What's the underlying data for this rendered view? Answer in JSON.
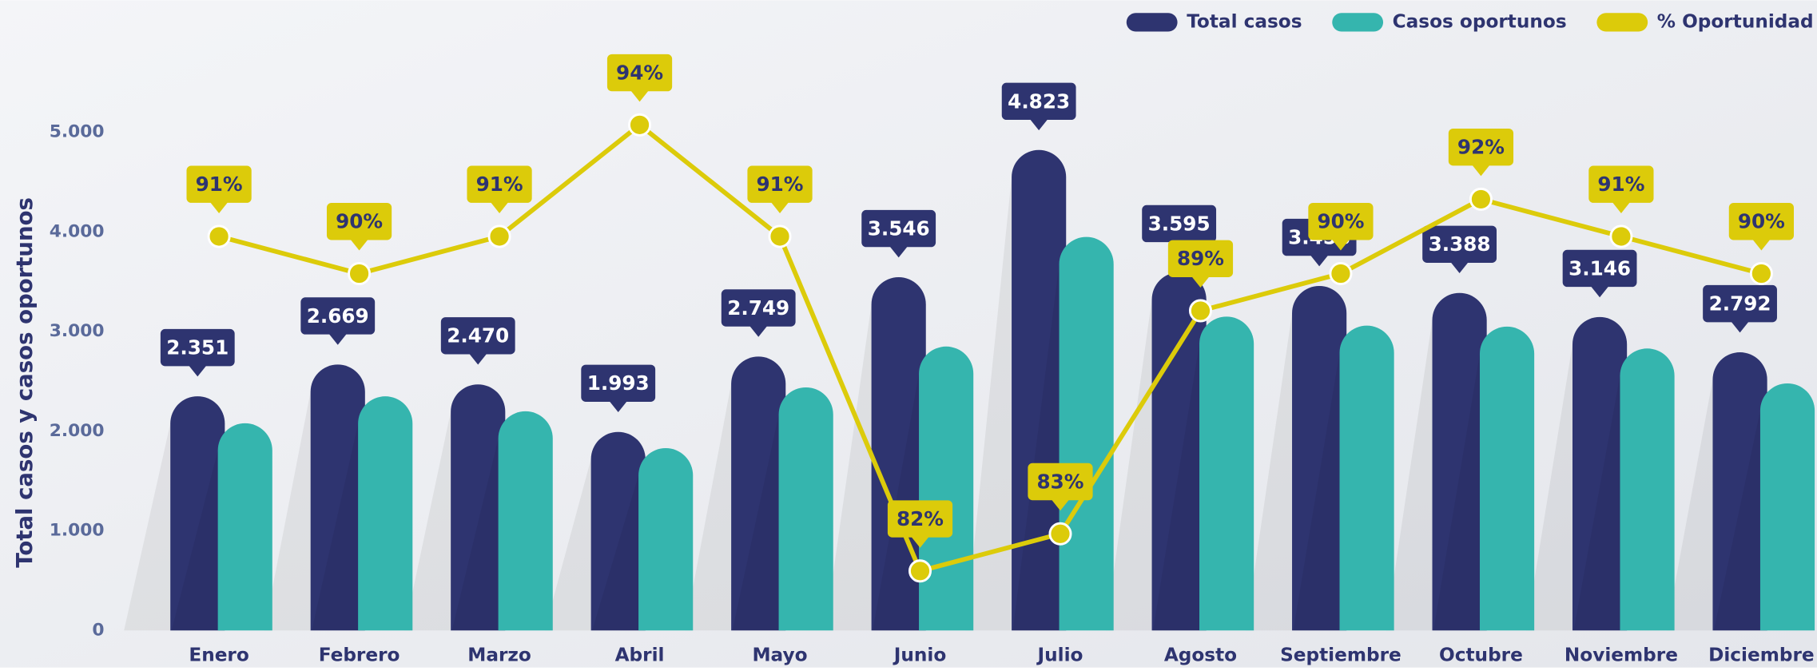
{
  "chart_data": {
    "type": "bar_line",
    "y_label": "Total casos y casos oportunos",
    "categories": [
      "Enero",
      "Febrero",
      "Marzo",
      "Abril",
      "Mayo",
      "Junio",
      "Julio",
      "Agosto",
      "Septiembre",
      "Octubre",
      "Noviembre",
      "Diciembre"
    ],
    "series": [
      {
        "name": "Total casos",
        "type": "bar",
        "color": "#2e3470",
        "values": [
          2351,
          2669,
          2470,
          1993,
          2749,
          3546,
          4823,
          3595,
          3458,
          3388,
          3146,
          2792
        ],
        "value_labels": [
          "2.351",
          "2.669",
          "2.470",
          "1.993",
          "2.749",
          "3.546",
          "4.823",
          "3.595",
          "3.458",
          "3.388",
          "3.146",
          "2.792"
        ]
      },
      {
        "name": "Casos oportunos",
        "type": "bar",
        "color": "#35b5ae",
        "values": [
          2080,
          2350,
          2200,
          1830,
          2440,
          2850,
          3950,
          3150,
          3060,
          3050,
          2830,
          2480
        ]
      },
      {
        "name": "% Oportunidad",
        "type": "line",
        "axis": "y2",
        "color": "#dccb0a",
        "values": [
          91,
          90,
          91,
          94,
          91,
          82,
          83,
          89,
          90,
          92,
          91,
          90
        ],
        "value_labels": [
          "91%",
          "90%",
          "91%",
          "94%",
          "91%",
          "82%",
          "83%",
          "89%",
          "90%",
          "92%",
          "91%",
          "90%"
        ]
      }
    ],
    "ylim": [
      0,
      5000
    ],
    "yticks": [
      0,
      {
        "value": 1000,
        "label": "1.000"
      },
      {
        "value": 2000,
        "label": "2.000"
      },
      {
        "value": 3000,
        "label": "3.000"
      },
      {
        "value": 4000,
        "label": "4.000"
      },
      {
        "value": 5000,
        "label": "5.000"
      }
    ],
    "y2lim": [
      80.4,
      93.8
    ],
    "legend": "top-right"
  }
}
